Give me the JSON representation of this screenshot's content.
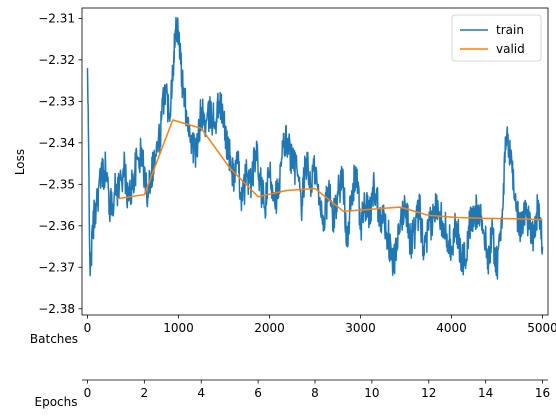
{
  "chart_data": {
    "type": "line",
    "ylabel": "Loss",
    "x_axis_label": "Batches",
    "secondary_x_axis_label": "Epochs",
    "xlim": [
      -60,
      5060
    ],
    "ylim": [
      -2.3815,
      -2.3075
    ],
    "x_ticks": [
      0,
      1000,
      2000,
      3000,
      4000,
      5000
    ],
    "x_tick_labels": [
      "0",
      "1000",
      "2000",
      "3000",
      "4000",
      "5000"
    ],
    "y_ticks": [
      -2.38,
      -2.37,
      -2.36,
      -2.35,
      -2.34,
      -2.33,
      -2.32,
      -2.31
    ],
    "y_tick_labels": [
      "−2.38",
      "−2.37",
      "−2.36",
      "−2.35",
      "−2.34",
      "−2.33",
      "−2.32",
      "−2.31"
    ],
    "epoch_ticks": [
      0,
      2,
      4,
      6,
      8,
      10,
      12,
      14,
      16
    ],
    "epoch_tick_labels": [
      "0",
      "2",
      "4",
      "6",
      "8",
      "10",
      "12",
      "14",
      "16"
    ],
    "epoch_range": [
      0,
      16
    ],
    "grid": false,
    "legend_position": "top-right",
    "series": [
      {
        "name": "train",
        "color": "#1f77b4",
        "note": "noisy per-batch curve; anchor values approximated from plot",
        "x": [
          0,
          30,
          60,
          100,
          150,
          200,
          250,
          300,
          350,
          400,
          450,
          500,
          550,
          600,
          650,
          700,
          750,
          800,
          850,
          900,
          950,
          980,
          1000,
          1050,
          1100,
          1150,
          1200,
          1250,
          1300,
          1350,
          1400,
          1450,
          1500,
          1550,
          1600,
          1650,
          1700,
          1750,
          1800,
          1850,
          1900,
          1950,
          2000,
          2050,
          2100,
          2150,
          2200,
          2250,
          2300,
          2350,
          2400,
          2450,
          2500,
          2550,
          2600,
          2650,
          2700,
          2750,
          2800,
          2850,
          2900,
          2950,
          3000,
          3050,
          3100,
          3150,
          3200,
          3250,
          3300,
          3350,
          3400,
          3450,
          3500,
          3550,
          3600,
          3650,
          3700,
          3750,
          3800,
          3850,
          3900,
          3950,
          4000,
          4050,
          4100,
          4150,
          4200,
          4250,
          4300,
          4350,
          4400,
          4450,
          4500,
          4550,
          4600,
          4650,
          4700,
          4750,
          4800,
          4850,
          4900,
          4950,
          5000
        ],
        "values": [
          -2.322,
          -2.372,
          -2.36,
          -2.354,
          -2.348,
          -2.346,
          -2.356,
          -2.352,
          -2.35,
          -2.346,
          -2.354,
          -2.349,
          -2.344,
          -2.343,
          -2.352,
          -2.347,
          -2.343,
          -2.338,
          -2.326,
          -2.333,
          -2.318,
          -2.311,
          -2.313,
          -2.328,
          -2.334,
          -2.34,
          -2.343,
          -2.332,
          -2.336,
          -2.333,
          -2.335,
          -2.33,
          -2.336,
          -2.342,
          -2.348,
          -2.345,
          -2.354,
          -2.347,
          -2.35,
          -2.342,
          -2.35,
          -2.356,
          -2.347,
          -2.352,
          -2.353,
          -2.341,
          -2.339,
          -2.345,
          -2.346,
          -2.357,
          -2.344,
          -2.35,
          -2.346,
          -2.355,
          -2.358,
          -2.351,
          -2.359,
          -2.352,
          -2.348,
          -2.362,
          -2.355,
          -2.346,
          -2.36,
          -2.355,
          -2.358,
          -2.35,
          -2.356,
          -2.358,
          -2.362,
          -2.369,
          -2.366,
          -2.358,
          -2.355,
          -2.364,
          -2.361,
          -2.356,
          -2.367,
          -2.361,
          -2.358,
          -2.354,
          -2.359,
          -2.362,
          -2.365,
          -2.359,
          -2.367,
          -2.368,
          -2.36,
          -2.358,
          -2.355,
          -2.361,
          -2.368,
          -2.362,
          -2.37,
          -2.358,
          -2.34,
          -2.342,
          -2.354,
          -2.361,
          -2.356,
          -2.359,
          -2.362,
          -2.355,
          -2.365
        ]
      },
      {
        "name": "valid",
        "color": "#ff7f0e",
        "x": [
          312,
          625,
          937,
          1250,
          1562,
          1875,
          2187,
          2500,
          2812,
          3125,
          3437,
          3750,
          4062,
          4375,
          4687,
          5000
        ],
        "values": [
          -2.3535,
          -2.3525,
          -2.3345,
          -2.3365,
          -2.346,
          -2.353,
          -2.3515,
          -2.351,
          -2.3565,
          -2.356,
          -2.3555,
          -2.3575,
          -2.358,
          -2.3582,
          -2.3583,
          -2.3585
        ]
      }
    ]
  }
}
